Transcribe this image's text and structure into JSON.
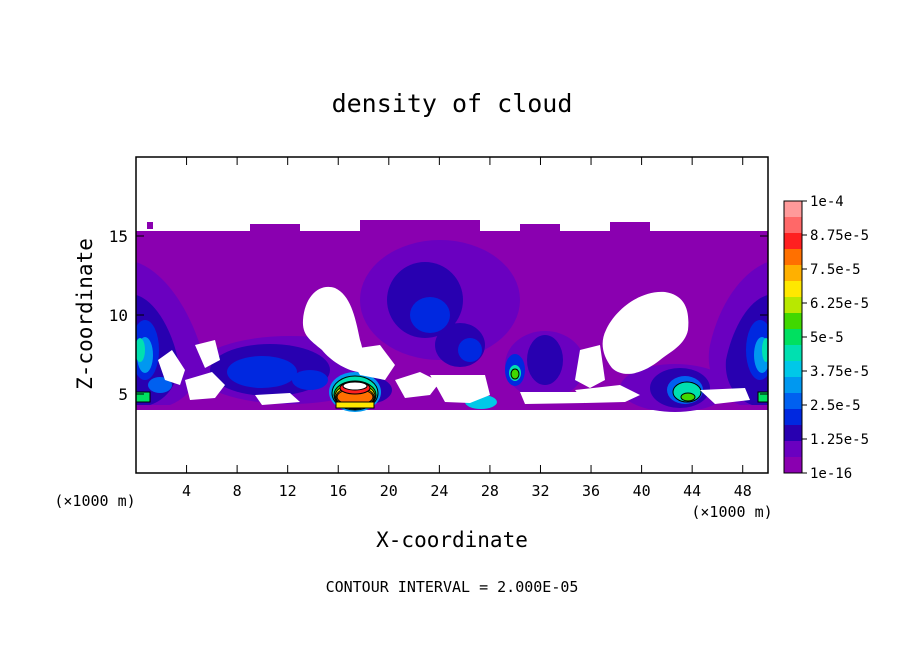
{
  "chart_data": {
    "type": "heatmap",
    "title": "density of cloud",
    "xlabel": "X-coordinate",
    "ylabel": "Z-coordinate",
    "x_unit": "(×1000 m)",
    "y_unit": "(×1000 m)",
    "xlim": [
      0,
      50
    ],
    "ylim": [
      0,
      20
    ],
    "x_ticks": [
      4,
      8,
      12,
      16,
      20,
      24,
      28,
      32,
      36,
      40,
      44,
      48
    ],
    "y_ticks": [
      5,
      10,
      15
    ],
    "footer": "CONTOUR INTERVAL = 2.000E-05",
    "colorbar": {
      "labels": [
        "1e-4",
        "8.75e-5",
        "7.5e-5",
        "6.25e-5",
        "5e-5",
        "3.75e-5",
        "2.5e-5",
        "1.25e-5",
        "1e-16"
      ],
      "colors": [
        "#ff9a9a",
        "#ff6868",
        "#ff2020",
        "#ff7000",
        "#ffb000",
        "#ffe800",
        "#b8e800",
        "#40d800",
        "#00e060",
        "#00e0b0",
        "#00c8e8",
        "#0098f0",
        "#0060f0",
        "#0028e0",
        "#2800b0",
        "#6a00c0",
        "#8a00b0"
      ],
      "levels": [
        0.0001,
        8.75e-05,
        7.5e-05,
        6.25e-05,
        5e-05,
        3.75e-05,
        2.5e-05,
        1.25e-05,
        1e-16
      ]
    },
    "cloud_top_z": 15.3,
    "cloud_base_z": 4.0,
    "regions": [
      {
        "x": [
          0,
          50
        ],
        "z": [
          4.0,
          15.3
        ],
        "value": 1e-16,
        "color": "#8a00b0"
      },
      {
        "x": [
          0.5,
          4
        ],
        "z": [
          4.5,
          11
        ],
        "value": 1.25e-05,
        "color": "#2a10c8"
      },
      {
        "x": [
          22,
          27
        ],
        "z": [
          8,
          14
        ],
        "value": 1.25e-05,
        "color": "#2a10c8"
      },
      {
        "x": [
          46,
          50
        ],
        "z": [
          4.5,
          11
        ],
        "value": 1.25e-05,
        "color": "#2a10c8"
      },
      {
        "x": [
          16.5,
          17.5
        ],
        "z": [
          4.3,
          6.0
        ],
        "value": 8.75e-05,
        "color": "#ff4040"
      },
      {
        "x": [
          30,
          30.5
        ],
        "z": [
          5.8,
          6.6
        ],
        "value": 5e-05,
        "color": "#40d800"
      },
      {
        "x": [
          43,
          44
        ],
        "z": [
          4.3,
          5.3
        ],
        "value": 3.75e-05,
        "color": "#00e0b0"
      }
    ]
  }
}
